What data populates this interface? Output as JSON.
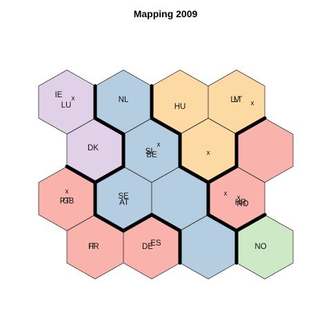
{
  "chart_data": {
    "type": "hexagonal self-organizing map",
    "title": "Mapping 2009",
    "grid": {
      "cols": 4,
      "rows": 4
    },
    "cluster_colors": {
      "purple": "#e0d0e8",
      "blue": "#b4cde0",
      "orange": "#fdd9a3",
      "red": "#f9b2ac",
      "green": "#cde9c5"
    },
    "cells": [
      {
        "id": "r0c0",
        "row": 0,
        "col": 0,
        "cluster": "purple",
        "labels": [
          "IE",
          "x",
          "LU"
        ]
      },
      {
        "id": "r0c1",
        "row": 0,
        "col": 1,
        "cluster": "blue",
        "labels": [
          "NL"
        ]
      },
      {
        "id": "r0c2",
        "row": 0,
        "col": 2,
        "cluster": "orange",
        "labels": [
          "HU"
        ]
      },
      {
        "id": "r0c3",
        "row": 0,
        "col": 3,
        "cluster": "orange",
        "labels": [
          "LV",
          "LT",
          "x"
        ]
      },
      {
        "id": "r1c0",
        "row": 1,
        "col": 0,
        "cluster": "purple",
        "labels": [
          "DK"
        ]
      },
      {
        "id": "r1c1",
        "row": 1,
        "col": 1,
        "cluster": "blue",
        "labels": [
          "x",
          "SI",
          "BE"
        ]
      },
      {
        "id": "r1c2",
        "row": 1,
        "col": 2,
        "cluster": "orange",
        "labels": [
          "x"
        ]
      },
      {
        "id": "r1c3",
        "row": 1,
        "col": 3,
        "cluster": "red",
        "labels": []
      },
      {
        "id": "r2c0",
        "row": 2,
        "col": 0,
        "cluster": "red",
        "labels": [
          "x",
          "PT",
          "GB"
        ]
      },
      {
        "id": "r2c1",
        "row": 2,
        "col": 1,
        "cluster": "blue",
        "labels": [
          "SE",
          "AT"
        ]
      },
      {
        "id": "r2c2",
        "row": 2,
        "col": 2,
        "cluster": "blue",
        "labels": []
      },
      {
        "id": "r2c3",
        "row": 2,
        "col": 3,
        "cluster": "red",
        "labels": [
          "x",
          "x",
          "HR",
          "RO"
        ]
      },
      {
        "id": "r3c0",
        "row": 3,
        "col": 0,
        "cluster": "red",
        "labels": [
          "IT",
          "FR"
        ]
      },
      {
        "id": "r3c1",
        "row": 3,
        "col": 1,
        "cluster": "red",
        "labels": [
          "DE",
          "ES"
        ]
      },
      {
        "id": "r3c2",
        "row": 3,
        "col": 2,
        "cluster": "blue",
        "labels": []
      },
      {
        "id": "r3c3",
        "row": 3,
        "col": 3,
        "cluster": "green",
        "labels": [
          "NO"
        ]
      }
    ]
  }
}
